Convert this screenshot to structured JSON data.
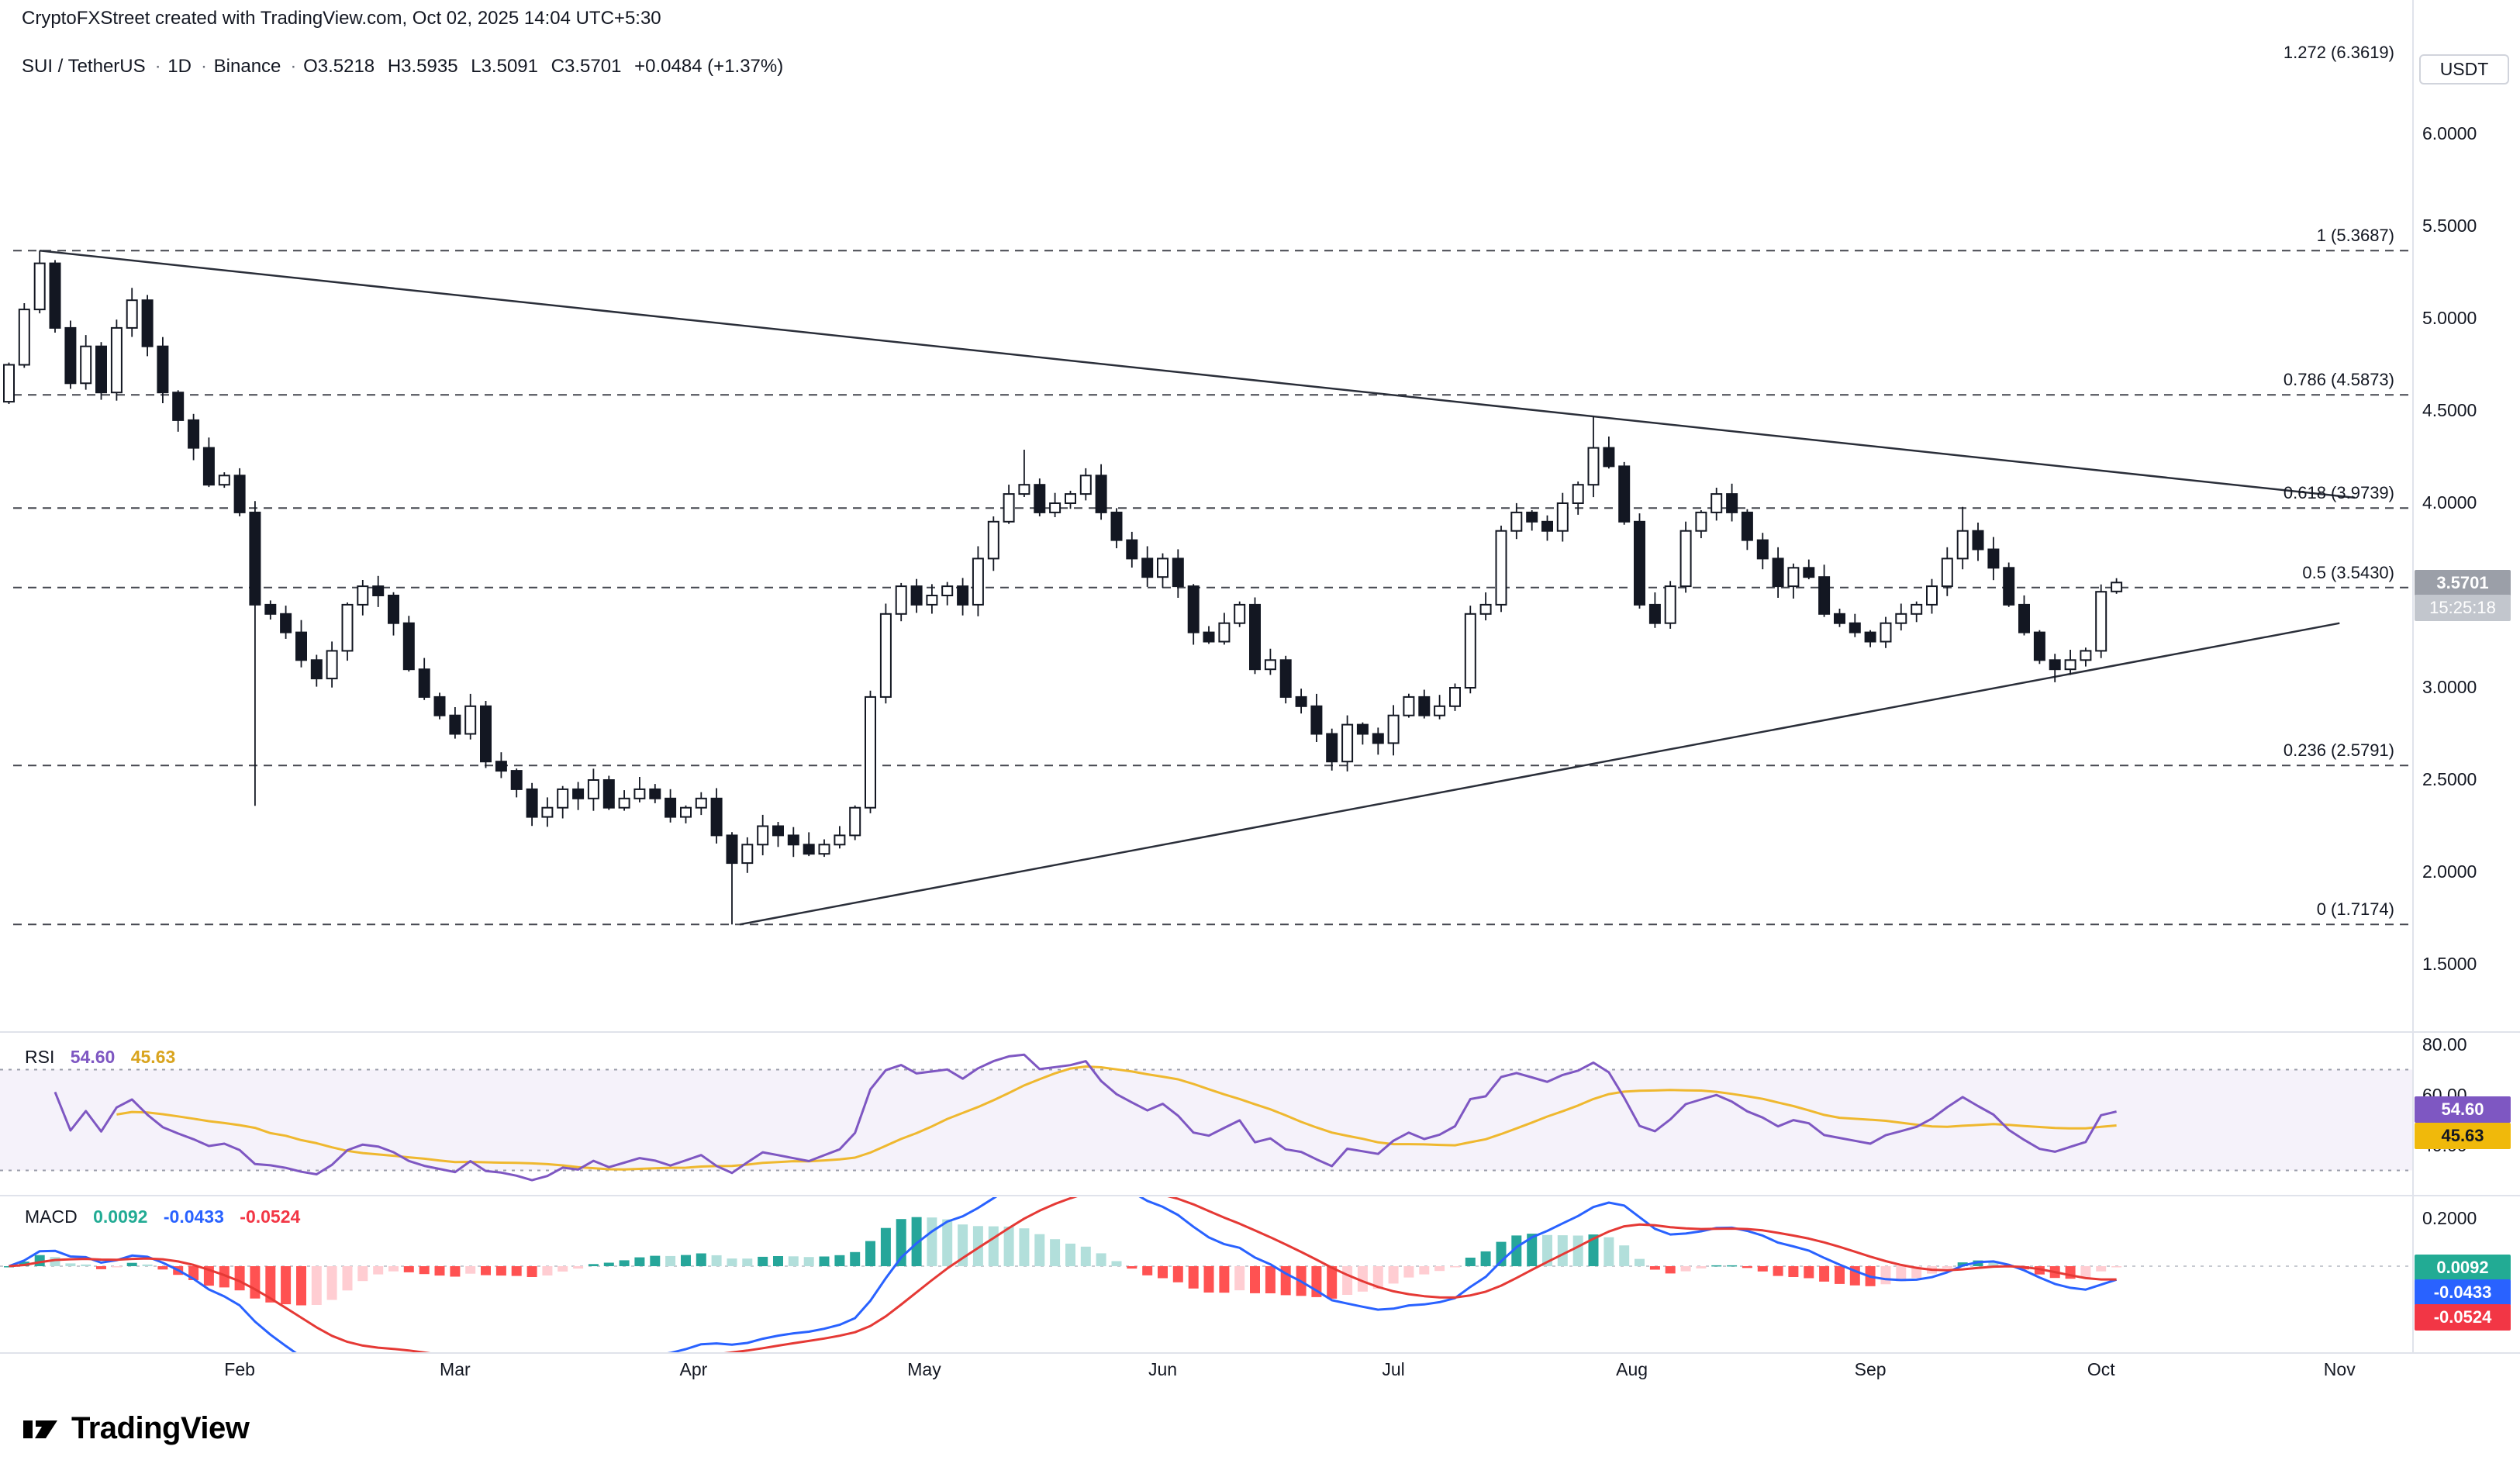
{
  "header": {
    "attribution": "CryptoFXStreet created with TradingView.com, Oct 02, 2025 14:04 UTC+5:30"
  },
  "legend": {
    "symbol": "SUI / TetherUS",
    "sep": "·",
    "timeframe": "1D",
    "exchange": "Binance",
    "o": "O3.5218",
    "h": "H3.5935",
    "l": "L3.5091",
    "c": "C3.5701",
    "change": "+0.0484 (+1.37%)"
  },
  "axis": {
    "currency": "USDT",
    "price_ticks": [
      "6.0000",
      "5.5000",
      "5.0000",
      "4.5000",
      "4.0000",
      "3.5000",
      "3.0000",
      "2.5000",
      "2.0000",
      "1.5000"
    ],
    "rsi_ticks": [
      "80.00",
      "60.00",
      "40.00"
    ],
    "macd_ticks": [
      "0.2000"
    ],
    "last_price": "3.5701",
    "countdown": "15:25:18"
  },
  "rsi": {
    "title": "RSI",
    "value": "54.60",
    "ma_value": "45.63"
  },
  "macd": {
    "title": "MACD",
    "hist_value": "0.0092",
    "macd_value": "-0.0433",
    "signal_value": "-0.0524"
  },
  "footer": {
    "brand": "TradingView"
  },
  "colors": {
    "up_candle": "#ffffff",
    "down_candle": "#131722",
    "rsi_line": "#7E57C2",
    "rsi_ma_line": "#EFB82F",
    "macd_line": "#2962FF",
    "signal_line": "#E53935",
    "hist_up": "#26A69A",
    "hist_up_weak": "#B2DFDB",
    "hist_down": "#FF5252",
    "hist_down_weak": "#FFCDD2"
  },
  "chart_data": {
    "type": "candlestick",
    "title": "SUI / TetherUS 1D Binance with RSI and MACD",
    "x_axis": {
      "candle_step_days": 2,
      "months": [
        {
          "label": "Feb",
          "day": 30
        },
        {
          "label": "Mar",
          "day": 58
        },
        {
          "label": "Apr",
          "day": 89
        },
        {
          "label": "May",
          "day": 119
        },
        {
          "label": "Jun",
          "day": 150
        },
        {
          "label": "Jul",
          "day": 180
        },
        {
          "label": "Aug",
          "day": 211
        },
        {
          "label": "Sep",
          "day": 242
        },
        {
          "label": "Oct",
          "day": 272
        },
        {
          "label": "Nov",
          "day": 303
        }
      ]
    },
    "price": {
      "ylim": [
        1.15,
        6.25
      ],
      "axis_tick_values": [
        6.0,
        5.5,
        5.0,
        4.5,
        4.0,
        3.5,
        3.0,
        2.5,
        2.0,
        1.5
      ],
      "first_open": 4.55,
      "closes": [
        4.75,
        5.05,
        5.3,
        4.95,
        4.65,
        4.85,
        4.6,
        4.95,
        5.1,
        4.85,
        4.6,
        4.45,
        4.3,
        4.1,
        4.15,
        3.95,
        3.45,
        3.4,
        3.3,
        3.15,
        3.05,
        3.2,
        3.45,
        3.55,
        3.5,
        3.35,
        3.1,
        2.95,
        2.85,
        2.75,
        2.9,
        2.6,
        2.55,
        2.45,
        2.3,
        2.35,
        2.45,
        2.4,
        2.5,
        2.35,
        2.4,
        2.45,
        2.4,
        2.3,
        2.35,
        2.4,
        2.2,
        2.05,
        2.15,
        2.25,
        2.2,
        2.15,
        2.1,
        2.15,
        2.2,
        2.35,
        2.95,
        3.4,
        3.55,
        3.45,
        3.5,
        3.55,
        3.45,
        3.7,
        3.9,
        4.05,
        4.1,
        3.95,
        4.0,
        4.05,
        4.15,
        3.95,
        3.8,
        3.7,
        3.6,
        3.7,
        3.55,
        3.3,
        3.25,
        3.35,
        3.45,
        3.1,
        3.15,
        2.95,
        2.9,
        2.75,
        2.6,
        2.8,
        2.75,
        2.7,
        2.85,
        2.95,
        2.85,
        2.9,
        3.0,
        3.4,
        3.45,
        3.85,
        3.95,
        3.9,
        3.85,
        4.0,
        4.1,
        4.3,
        4.2,
        3.9,
        3.45,
        3.35,
        3.55,
        3.85,
        3.95,
        4.05,
        3.95,
        3.8,
        3.7,
        3.55,
        3.65,
        3.6,
        3.4,
        3.35,
        3.3,
        3.25,
        3.35,
        3.4,
        3.45,
        3.55,
        3.7,
        3.85,
        3.75,
        3.65,
        3.45,
        3.3,
        3.15,
        3.1,
        3.15,
        3.2,
        3.52,
        3.5701
      ],
      "wick_overrides": {
        "2": {
          "h": 5.3687
        },
        "16": {
          "l": 2.36
        },
        "47": {
          "l": 1.7174
        },
        "66": {
          "h": 4.29
        },
        "103": {
          "h": 4.47
        },
        "127": {
          "h": 3.98
        },
        "133": {
          "l": 3.03
        },
        "137": {
          "o": 3.5218,
          "h": 3.5935,
          "l": 3.5091,
          "c": 3.5701
        }
      },
      "fib_levels": [
        {
          "label": "1.272 (6.3619)",
          "value": 6.3619
        },
        {
          "label": "1 (5.3687)",
          "value": 5.3687
        },
        {
          "label": "0.786 (4.5873)",
          "value": 4.5873
        },
        {
          "label": "0.618 (3.9739)",
          "value": 3.9739
        },
        {
          "label": "0.5 (3.5430)",
          "value": 3.543
        },
        {
          "label": "0.236 (2.5791)",
          "value": 2.5791
        },
        {
          "label": "0 (1.7174)",
          "value": 1.7174
        }
      ],
      "trendlines": [
        {
          "d1": 4,
          "p1": 5.3687,
          "d2": 305,
          "p2": 4.03
        },
        {
          "d1": 95,
          "p1": 1.7174,
          "d2": 303,
          "p2": 3.35
        }
      ],
      "last_price": 3.5701
    },
    "rsi": {
      "period": 14,
      "ma_period": 14,
      "bands": [
        70,
        30
      ],
      "current": 54.6,
      "ma_current": 45.63,
      "axis_ticks": [
        80,
        60,
        40
      ]
    },
    "macd": {
      "fast": 12,
      "slow": 26,
      "signal": 9,
      "current_hist": 0.0092,
      "current_macd": -0.0433,
      "current_signal": -0.0524,
      "axis_tick": 0.2
    }
  }
}
